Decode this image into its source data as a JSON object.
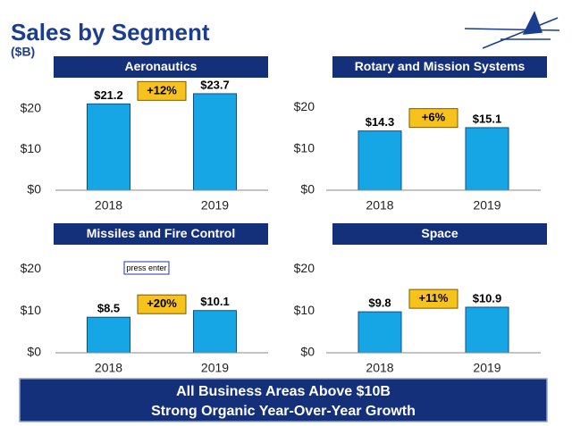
{
  "header": {
    "title": "Sales by Segment",
    "subtitle": "($B)"
  },
  "note": "press enter",
  "footer": {
    "lines": [
      "All Business Areas Above $10B",
      "Strong Organic Year-Over-Year Growth"
    ]
  },
  "chart_data": [
    {
      "type": "bar",
      "title": "Aeronautics",
      "categories": [
        "2018",
        "2019"
      ],
      "values": [
        21.2,
        23.7
      ],
      "value_labels": [
        "$21.2",
        "$23.7"
      ],
      "change": "+12%",
      "color": "#16a6e6",
      "ylim": [
        0,
        25
      ],
      "yticks": [
        {
          "value": 0,
          "label": "$0"
        },
        {
          "value": 10,
          "label": "$10"
        },
        {
          "value": 20,
          "label": "$20"
        }
      ],
      "grid": false
    },
    {
      "type": "bar",
      "title": "Rotary and Mission Systems",
      "categories": [
        "2018",
        "2019"
      ],
      "values": [
        14.3,
        15.1
      ],
      "value_labels": [
        "$14.3",
        "$15.1"
      ],
      "change": "+6%",
      "color": "#16a6e6",
      "ylim": [
        0,
        25
      ],
      "yticks": [
        {
          "value": 0,
          "label": "$0"
        },
        {
          "value": 10,
          "label": "$10"
        },
        {
          "value": 20,
          "label": "$20"
        }
      ],
      "grid": false
    },
    {
      "type": "bar",
      "title": "Missiles and Fire Control",
      "categories": [
        "2018",
        "2019"
      ],
      "values": [
        8.5,
        10.1
      ],
      "value_labels": [
        "$8.5",
        "$10.1"
      ],
      "change": "+20%",
      "color": "#16a6e6",
      "ylim": [
        0,
        25
      ],
      "yticks": [
        {
          "value": 0,
          "label": "$0"
        },
        {
          "value": 10,
          "label": "$10"
        },
        {
          "value": 20,
          "label": "$20"
        }
      ],
      "grid": false
    },
    {
      "type": "bar",
      "title": "Space",
      "categories": [
        "2018",
        "2019"
      ],
      "values": [
        9.8,
        10.9
      ],
      "value_labels": [
        "$9.8",
        "$10.9"
      ],
      "change": "+11%",
      "color": "#16a6e6",
      "ylim": [
        0,
        25
      ],
      "yticks": [
        {
          "value": 0,
          "label": "$0"
        },
        {
          "value": 10,
          "label": "$10"
        },
        {
          "value": 20,
          "label": "$20"
        }
      ],
      "grid": false
    }
  ]
}
